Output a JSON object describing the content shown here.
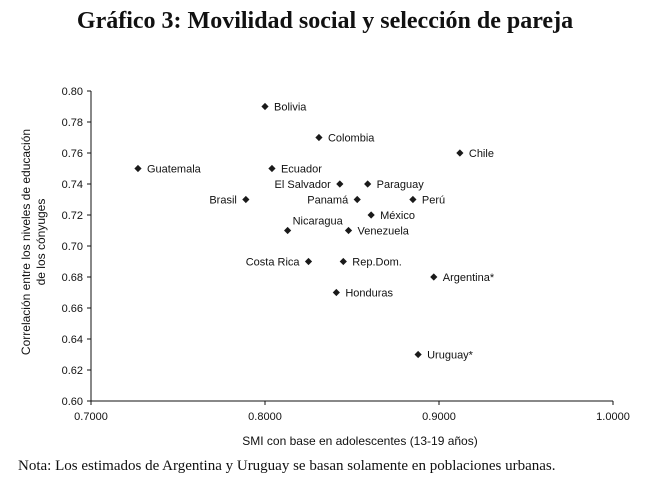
{
  "header": {
    "title": "Gráfico 3: Movilidad social y selección de pareja"
  },
  "footer": {
    "note": "Nota: Los estimados de Argentina y Uruguay se basan solamente en poblaciones urbanas."
  },
  "chart_data": {
    "type": "scatter",
    "title": "Gráfico 3: Movilidad social y selección de pareja",
    "xlabel": "SMI con base en adolescentes (13-19 años)",
    "ylabel_lines": [
      "Correlación entre los niveles de educación",
      "de los cónyuges"
    ],
    "xlim": [
      0.7,
      1.0
    ],
    "ylim": [
      0.6,
      0.8
    ],
    "x_ticks": [
      0.7,
      0.8,
      0.9,
      1.0
    ],
    "x_tick_labels": [
      "0.7000",
      "0.8000",
      "0.9000",
      "1.0000"
    ],
    "y_ticks": [
      0.6,
      0.62,
      0.64,
      0.66,
      0.68,
      0.7,
      0.72,
      0.74,
      0.76,
      0.78,
      0.8
    ],
    "y_tick_labels": [
      "0.60",
      "0.62",
      "0.64",
      "0.66",
      "0.68",
      "0.70",
      "0.72",
      "0.74",
      "0.76",
      "0.78",
      "0.80"
    ],
    "grid": false,
    "marker": "diamond",
    "points": [
      {
        "label": "Bolivia",
        "x": 0.8,
        "y": 0.79,
        "label_pos": "right"
      },
      {
        "label": "Colombia",
        "x": 0.831,
        "y": 0.77,
        "label_pos": "right"
      },
      {
        "label": "Chile",
        "x": 0.912,
        "y": 0.76,
        "label_pos": "right"
      },
      {
        "label": "Guatemala",
        "x": 0.727,
        "y": 0.75,
        "label_pos": "right"
      },
      {
        "label": "Ecuador",
        "x": 0.804,
        "y": 0.75,
        "label_pos": "right"
      },
      {
        "label": "El Salvador",
        "x": 0.843,
        "y": 0.74,
        "label_pos": "left"
      },
      {
        "label": "Paraguay",
        "x": 0.859,
        "y": 0.74,
        "label_pos": "right"
      },
      {
        "label": "Brasil",
        "x": 0.789,
        "y": 0.73,
        "label_pos": "left"
      },
      {
        "label": "Panamá",
        "x": 0.853,
        "y": 0.73,
        "label_pos": "left"
      },
      {
        "label": "Perú",
        "x": 0.885,
        "y": 0.73,
        "label_pos": "right"
      },
      {
        "label": "México",
        "x": 0.861,
        "y": 0.72,
        "label_pos": "right"
      },
      {
        "label": "Nicaragua",
        "x": 0.813,
        "y": 0.71,
        "label_pos": "right-up"
      },
      {
        "label": "Venezuela",
        "x": 0.848,
        "y": 0.71,
        "label_pos": "right"
      },
      {
        "label": "Costa Rica",
        "x": 0.825,
        "y": 0.69,
        "label_pos": "left"
      },
      {
        "label": "Rep.Dom.",
        "x": 0.845,
        "y": 0.69,
        "label_pos": "right"
      },
      {
        "label": "Argentina*",
        "x": 0.897,
        "y": 0.68,
        "label_pos": "right"
      },
      {
        "label": "Honduras",
        "x": 0.841,
        "y": 0.67,
        "label_pos": "right"
      },
      {
        "label": "Uruguay*",
        "x": 0.888,
        "y": 0.63,
        "label_pos": "right"
      }
    ],
    "colors": {
      "marker": "#1a1a1a",
      "axis": "#111111"
    }
  }
}
